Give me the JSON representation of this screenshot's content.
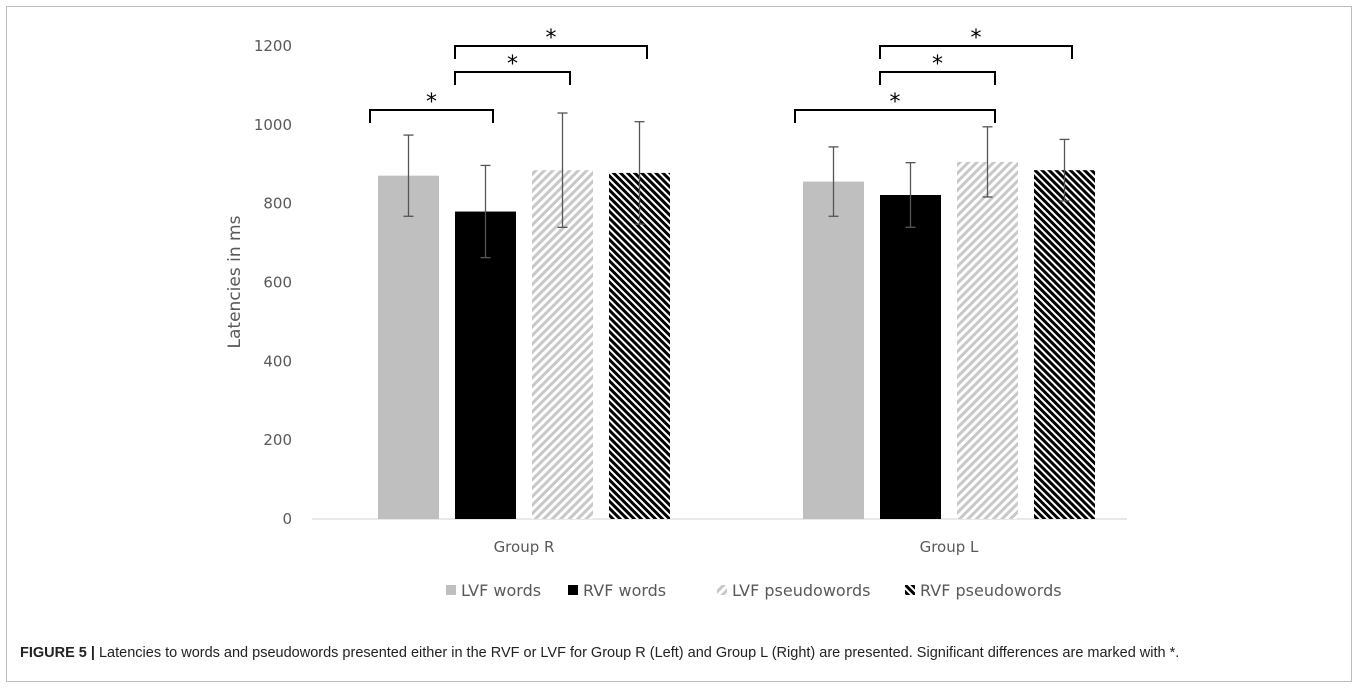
{
  "chart_data": {
    "type": "bar",
    "categories": [
      "Group R",
      "Group L"
    ],
    "series": [
      {
        "name": "LVF words",
        "values": [
          871,
          856
        ],
        "errors": [
          103,
          88
        ],
        "color": "#bfbfbf",
        "pattern": "solid"
      },
      {
        "name": "RVF words",
        "values": [
          780,
          822
        ],
        "errors": [
          117,
          82
        ],
        "color": "#000000",
        "pattern": "solid"
      },
      {
        "name": "LVF pseudowords",
        "values": [
          885,
          906
        ],
        "errors": [
          145,
          89
        ],
        "color": "#bfbfbf",
        "pattern": "diagonal-light"
      },
      {
        "name": "RVF pseudowords",
        "values": [
          878,
          885
        ],
        "errors": [
          130,
          78
        ],
        "color": "#000000",
        "pattern": "diagonal-dark"
      }
    ],
    "ylabel": "Latencies in ms",
    "xlabel": "",
    "ylim": [
      0,
      1200
    ],
    "yticks": [
      "0",
      "200",
      "400",
      "600",
      "800",
      "1000",
      "1200"
    ],
    "grid": false,
    "legend_position": "bottom",
    "significance": [
      {
        "group": 0,
        "from": 0,
        "to": 1,
        "label": "*"
      },
      {
        "group": 0,
        "from": 1,
        "to": 2,
        "label": "*"
      },
      {
        "group": 0,
        "from": 1,
        "to": 3,
        "label": "*"
      },
      {
        "group": 1,
        "from": 0,
        "to": 2,
        "label": "*"
      },
      {
        "group": 1,
        "from": 1,
        "to": 2,
        "label": "*"
      },
      {
        "group": 1,
        "from": 1,
        "to": 3,
        "label": "*"
      }
    ]
  },
  "caption": {
    "label": "FIGURE 5 |",
    "text": " Latencies to words and pseudowords presented either in the RVF or LVF for Group R (Left) and Group L (Right) are presented. Significant differences are marked with *."
  }
}
